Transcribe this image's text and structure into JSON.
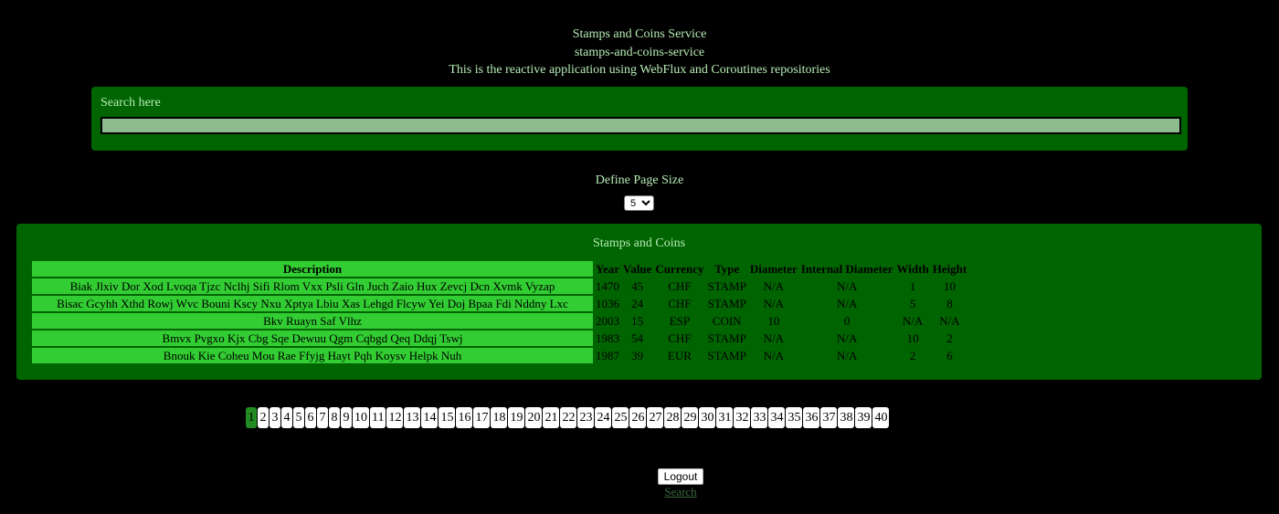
{
  "header": {
    "title": "Stamps and Coins Service",
    "subtitle": "stamps-and-coins-service",
    "description": "This is the reactive application using WebFlux and Coroutines repositories"
  },
  "search": {
    "label": "Search here",
    "value": ""
  },
  "page_size": {
    "label": "Define Page Size",
    "selected": "5"
  },
  "table": {
    "title": "Stamps and Coins",
    "headers": [
      "Description",
      "Year",
      "Value",
      "Currency",
      "Type",
      "Diameter",
      "Internal Diameter",
      "Width",
      "Height"
    ],
    "rows": [
      [
        "Biak Jlxiv Dor Xod Lvoqa Tjzc Nclhj Sifi Rlom Vxx Psli Gln Juch Zaio Hux Zevcj Dcn Xvmk Vyzap",
        "1470",
        "45",
        "CHF",
        "STAMP",
        "N/A",
        "N/A",
        "1",
        "10"
      ],
      [
        "Bisac Gcyhh Xthd Rowj Wvc Bouni Kscy Nxu Xptya Lbiu Xas Lehgd Flcyw Yei Doj Bpaa Fdi Nddny Lxc",
        "1036",
        "24",
        "CHF",
        "STAMP",
        "N/A",
        "N/A",
        "5",
        "8"
      ],
      [
        "Bkv Ruayn Saf Vlhz",
        "2003",
        "15",
        "ESP",
        "COIN",
        "10",
        "0",
        "N/A",
        "N/A"
      ],
      [
        "Bmvx Pvgxo Kjx Cbg Sqe Dewuu Qgm Cqbgd Qeq Ddqj Tswj",
        "1983",
        "54",
        "CHF",
        "STAMP",
        "N/A",
        "N/A",
        "10",
        "2"
      ],
      [
        "Bnouk Kie Coheu Mou Rae Ffyjg Hayt Pqh Koysv Helpk Nuh",
        "1987",
        "39",
        "EUR",
        "STAMP",
        "N/A",
        "N/A",
        "2",
        "6"
      ]
    ]
  },
  "pagination": {
    "current": "1",
    "pages": [
      "1",
      "2",
      "3",
      "4",
      "5",
      "6",
      "7",
      "8",
      "9",
      "10",
      "11",
      "12",
      "13",
      "14",
      "15",
      "16",
      "17",
      "18",
      "19",
      "20",
      "21",
      "22",
      "23",
      "24",
      "25",
      "26",
      "27",
      "28",
      "29",
      "30",
      "31",
      "32",
      "33",
      "34",
      "35",
      "36",
      "37",
      "38",
      "39",
      "40"
    ]
  },
  "footer": {
    "logout_label": "Logout",
    "search_link": "Search"
  }
}
